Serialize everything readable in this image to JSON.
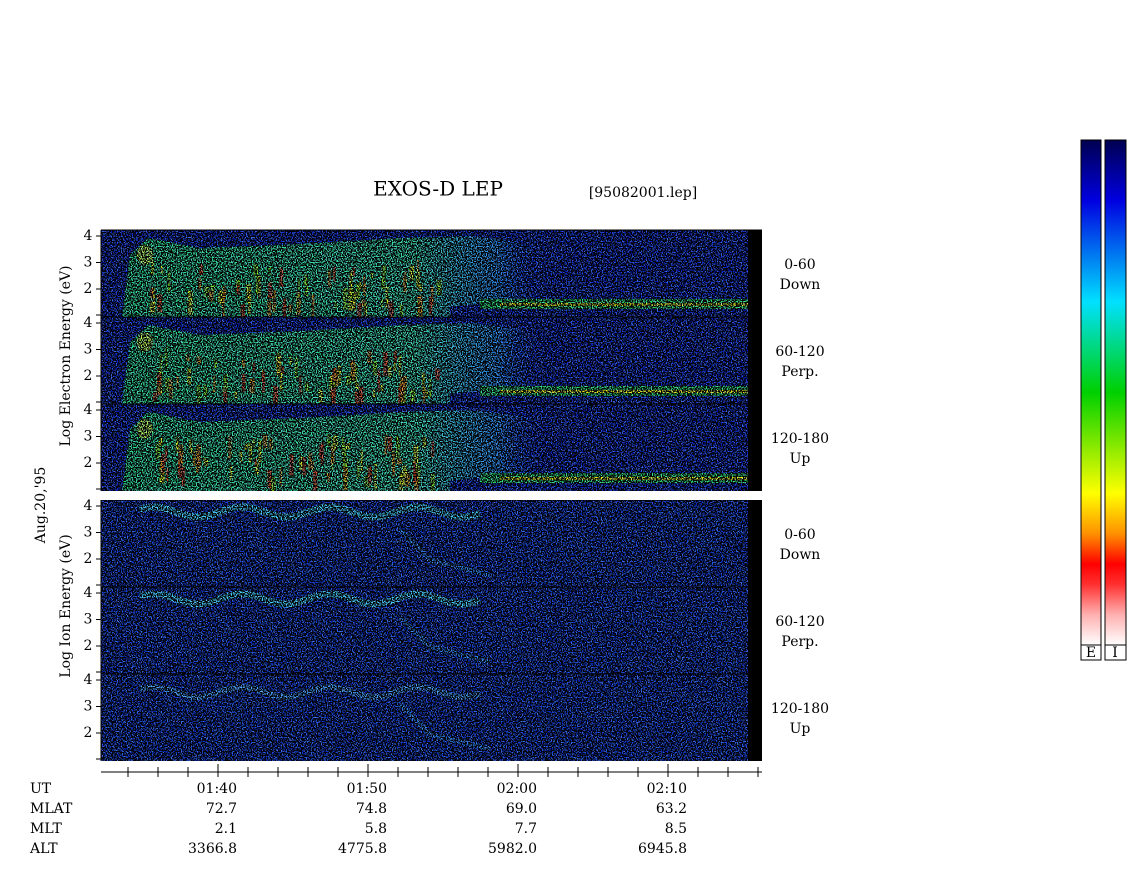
{
  "header": {
    "title": "EXOS-D LEP",
    "file": "[95082001.lep]"
  },
  "date": "Aug.20,'95",
  "electron": {
    "axis_label": "Log Electron Energy (eV)",
    "panels": [
      {
        "range": "0-60",
        "direction": "Down"
      },
      {
        "range": "60-120",
        "direction": "Perp."
      },
      {
        "range": "120-180",
        "direction": "Up"
      }
    ]
  },
  "ion": {
    "axis_label": "Log Ion Energy (eV)",
    "panels": [
      {
        "range": "0-60",
        "direction": "Down"
      },
      {
        "range": "60-120",
        "direction": "Perp."
      },
      {
        "range": "120-180",
        "direction": "Up"
      }
    ]
  },
  "energy_ticks": [
    "4",
    "3",
    "2"
  ],
  "time_table": {
    "rows": [
      {
        "label": "UT",
        "values": [
          "01:40",
          "01:50",
          "02:00",
          "02:10"
        ]
      },
      {
        "label": "MLAT",
        "values": [
          "72.7",
          "74.8",
          "69.0",
          "63.2"
        ]
      },
      {
        "label": "MLT",
        "values": [
          "2.1",
          "5.8",
          "7.7",
          "8.5"
        ]
      },
      {
        "label": "ALT",
        "values": [
          "3366.8",
          "4775.8",
          "5982.0",
          "6945.8"
        ]
      }
    ]
  },
  "colorbar": {
    "labels": [
      "E",
      "I"
    ]
  }
}
